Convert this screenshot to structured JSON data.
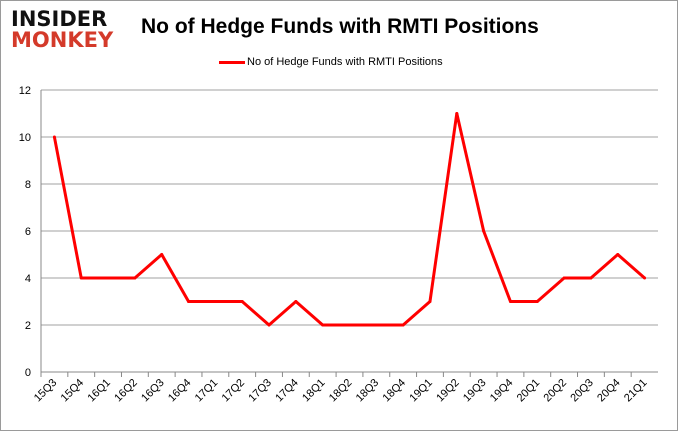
{
  "logo": {
    "line1": "INSIDER",
    "line2": "MONKEY"
  },
  "chart_data": {
    "type": "line",
    "title": "No of Hedge Funds with RMTI Positions",
    "xlabel": "",
    "ylabel": "",
    "categories": [
      "15Q3",
      "15Q4",
      "16Q1",
      "16Q2",
      "16Q3",
      "16Q4",
      "17Q1",
      "17Q2",
      "17Q3",
      "17Q4",
      "18Q1",
      "18Q2",
      "18Q3",
      "18Q4",
      "19Q1",
      "19Q2",
      "19Q3",
      "19Q4",
      "20Q1",
      "20Q2",
      "20Q3",
      "20Q4",
      "21Q1"
    ],
    "series": [
      {
        "name": "No of Hedge Funds with RMTI Positions",
        "color": "#ff0000",
        "values": [
          10,
          4,
          4,
          4,
          5,
          3,
          3,
          3,
          2,
          3,
          2,
          2,
          2,
          2,
          3,
          11,
          6,
          3,
          3,
          4,
          4,
          5,
          4
        ]
      }
    ],
    "ylim": [
      0,
      12
    ],
    "yticks": [
      0,
      2,
      4,
      6,
      8,
      10,
      12
    ],
    "grid": true,
    "legend": "top-center"
  }
}
